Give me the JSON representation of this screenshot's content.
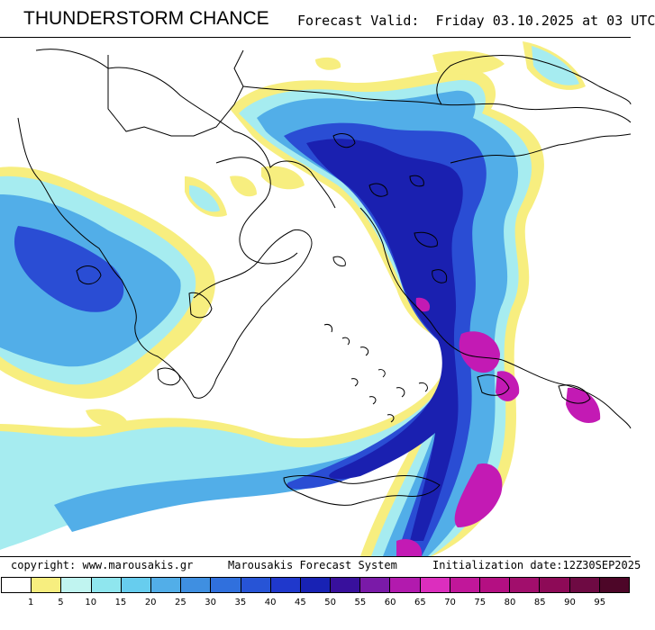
{
  "header": {
    "title": "THUNDERSTORM CHANCE",
    "forecast_label": "Forecast Valid:",
    "forecast_value": "Friday 03.10.2025 at 03 UTC"
  },
  "footer": {
    "copyright": "copyright: www.marousakis.gr",
    "system": "Marousakis Forecast System",
    "init": "Initialization date:12Z30SEP2025"
  },
  "legend": {
    "bins": [
      {
        "label": "1",
        "color": "#ffffff"
      },
      {
        "label": "5",
        "color": "#f7ee7f"
      },
      {
        "label": "10",
        "color": "#c0f4f0"
      },
      {
        "label": "15",
        "color": "#8fe6ee"
      },
      {
        "label": "20",
        "color": "#67cdee"
      },
      {
        "label": "25",
        "color": "#52aee8"
      },
      {
        "label": "30",
        "color": "#3f8fe1"
      },
      {
        "label": "35",
        "color": "#3070dd"
      },
      {
        "label": "40",
        "color": "#2754d6"
      },
      {
        "label": "45",
        "color": "#1f38cc"
      },
      {
        "label": "50",
        "color": "#1822b4"
      },
      {
        "label": "55",
        "color": "#38109c"
      },
      {
        "label": "60",
        "color": "#7a1aa8"
      },
      {
        "label": "65",
        "color": "#b21aae"
      },
      {
        "label": "70",
        "color": "#dc2ebe"
      },
      {
        "label": "75",
        "color": "#c1179a"
      },
      {
        "label": "80",
        "color": "#b40f82"
      },
      {
        "label": "85",
        "color": "#a10e6c"
      },
      {
        "label": "90",
        "color": "#8d0a57"
      },
      {
        "label": "95",
        "color": "#6e0a43"
      },
      {
        "label": "",
        "color": "#4d0628"
      }
    ]
  }
}
